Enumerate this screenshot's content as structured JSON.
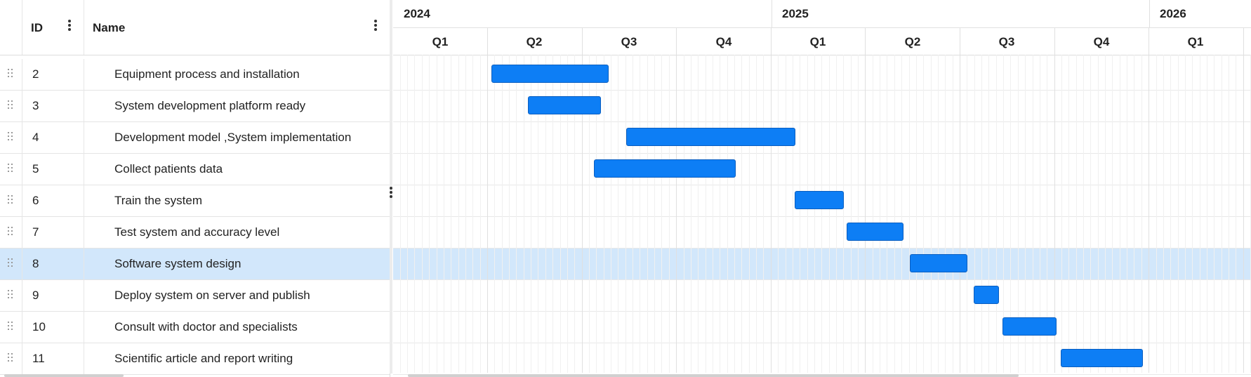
{
  "grid": {
    "columns": {
      "id": "ID",
      "name": "Name"
    },
    "rows": [
      {
        "id": "2",
        "name": "Equipment process and installation"
      },
      {
        "id": "3",
        "name": "System development platform ready"
      },
      {
        "id": "4",
        "name": "Development model ,System implementation"
      },
      {
        "id": "5",
        "name": "Collect patients data"
      },
      {
        "id": "6",
        "name": "Train the system"
      },
      {
        "id": "7",
        "name": "Test system and accuracy level"
      },
      {
        "id": "8",
        "name": "Software system design",
        "selected": true
      },
      {
        "id": "9",
        "name": "Deploy system on server and publish"
      },
      {
        "id": "10",
        "name": "Consult with doctor and specialists"
      },
      {
        "id": "11",
        "name": "Scientific article and report writing"
      }
    ]
  },
  "timeline": {
    "years": [
      "2024",
      "2025",
      "2026"
    ],
    "quarters": [
      "Q1",
      "Q2",
      "Q3",
      "Q4",
      "Q1",
      "Q2",
      "Q3",
      "Q4",
      "Q1"
    ]
  },
  "tasks": [
    {
      "id": "2",
      "start_q": 1.04,
      "duration_q": 1.24
    },
    {
      "id": "3",
      "start_q": 1.43,
      "duration_q": 0.77
    },
    {
      "id": "4",
      "start_q": 2.47,
      "duration_q": 1.79
    },
    {
      "id": "5",
      "start_q": 2.13,
      "duration_q": 1.5
    },
    {
      "id": "6",
      "start_q": 4.25,
      "duration_q": 0.52
    },
    {
      "id": "7",
      "start_q": 4.8,
      "duration_q": 0.6
    },
    {
      "id": "8",
      "start_q": 5.47,
      "duration_q": 0.61
    },
    {
      "id": "9",
      "start_q": 6.15,
      "duration_q": 0.27
    },
    {
      "id": "10",
      "start_q": 6.45,
      "duration_q": 0.57
    },
    {
      "id": "11",
      "start_q": 7.07,
      "duration_q": 0.87
    }
  ],
  "colors": {
    "bar": "#0d7ef5",
    "selected_row": "#d2e7fb"
  },
  "icons": {
    "row_handle": "drag-handle-icon",
    "column_menu": "kebab-menu-icon"
  }
}
